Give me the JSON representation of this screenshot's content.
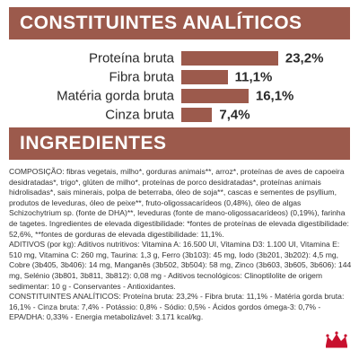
{
  "header": {
    "analytic_title": "CONSTITUINTES ANALÍTICOS",
    "ingredients_title": "INGREDIENTES"
  },
  "analytics": [
    {
      "label": "Proteína bruta",
      "value_text": "23,2%",
      "value": 23.2
    },
    {
      "label": "Fibra bruta",
      "value_text": "11,1%",
      "value": 11.1
    },
    {
      "label": "Matéria gorda bruta",
      "value_text": "16,1%",
      "value": 16.1
    },
    {
      "label": "Cinza bruta",
      "value_text": "7,4%",
      "value": 7.4
    }
  ],
  "ingredients": {
    "paragraphs": [
      "COMPOSIÇÃO: fibras vegetais, milho*, gorduras animais**, arroz*, proteínas de aves de capoeira desidratadas*, trigo*, glúten de milho*, proteínas de porco desidratadas*, proteínas animais hidrolisadas*, sais minerais, polpa de beterraba, óleo de soja**, cascas e sementes de psyllium, produtos de leveduras, óleo de peixe**, fruto-oligossacarídeos (0,48%), óleo de algas Schizochytrium sp. (fonte de DHA)**, leveduras (fonte de mano-oligossacarídeos) (0,19%), farinha de tagetes. Ingredientes de elevada digestibilidade: *fontes de proteínas de elevada digestibilidade: 52,6%, **fontes de gorduras de elevada digestibilidade: 11,1%.",
      "ADITIVOS (por kg): Aditivos nutritivos: Vitamina A: 16.500 UI, Vitamina D3: 1.100 UI, Vitamina E: 510 mg, Vitamina C: 260 mg, Taurina: 1,3 g, Ferro (3b103): 45 mg, Iodo (3b201, 3b202): 4,5 mg, Cobre (3b405, 3b406): 14 mg, Manganês (3b502, 3b504): 58 mg, Zinco (3b603, 3b605, 3b606): 144 mg, Selénio (3b801, 3b811, 3b812): 0,08 mg - Aditivos tecnológicos: Clinoptilolite de origem sedimentar: 10 g - Conservantes - Antioxidantes.",
      "CONSTITUINTES ANALÍTICOS: Proteína bruta: 23,2% - Fibra bruta: 11,1% - Matéria gorda bruta: 16,1% - Cinza bruta: 7,4% - Potássio: 0,8% - Sódio: 0,5% - Ácidos gordos ómega-3: 0,7% - EPA/DHA: 0,33% - Energia metabolizável: 3.171 kcal/kg."
    ]
  },
  "colors": {
    "accent": "#9c5a4c",
    "logo": "#c8102e"
  },
  "logo": {
    "icon": "crown-icon"
  }
}
